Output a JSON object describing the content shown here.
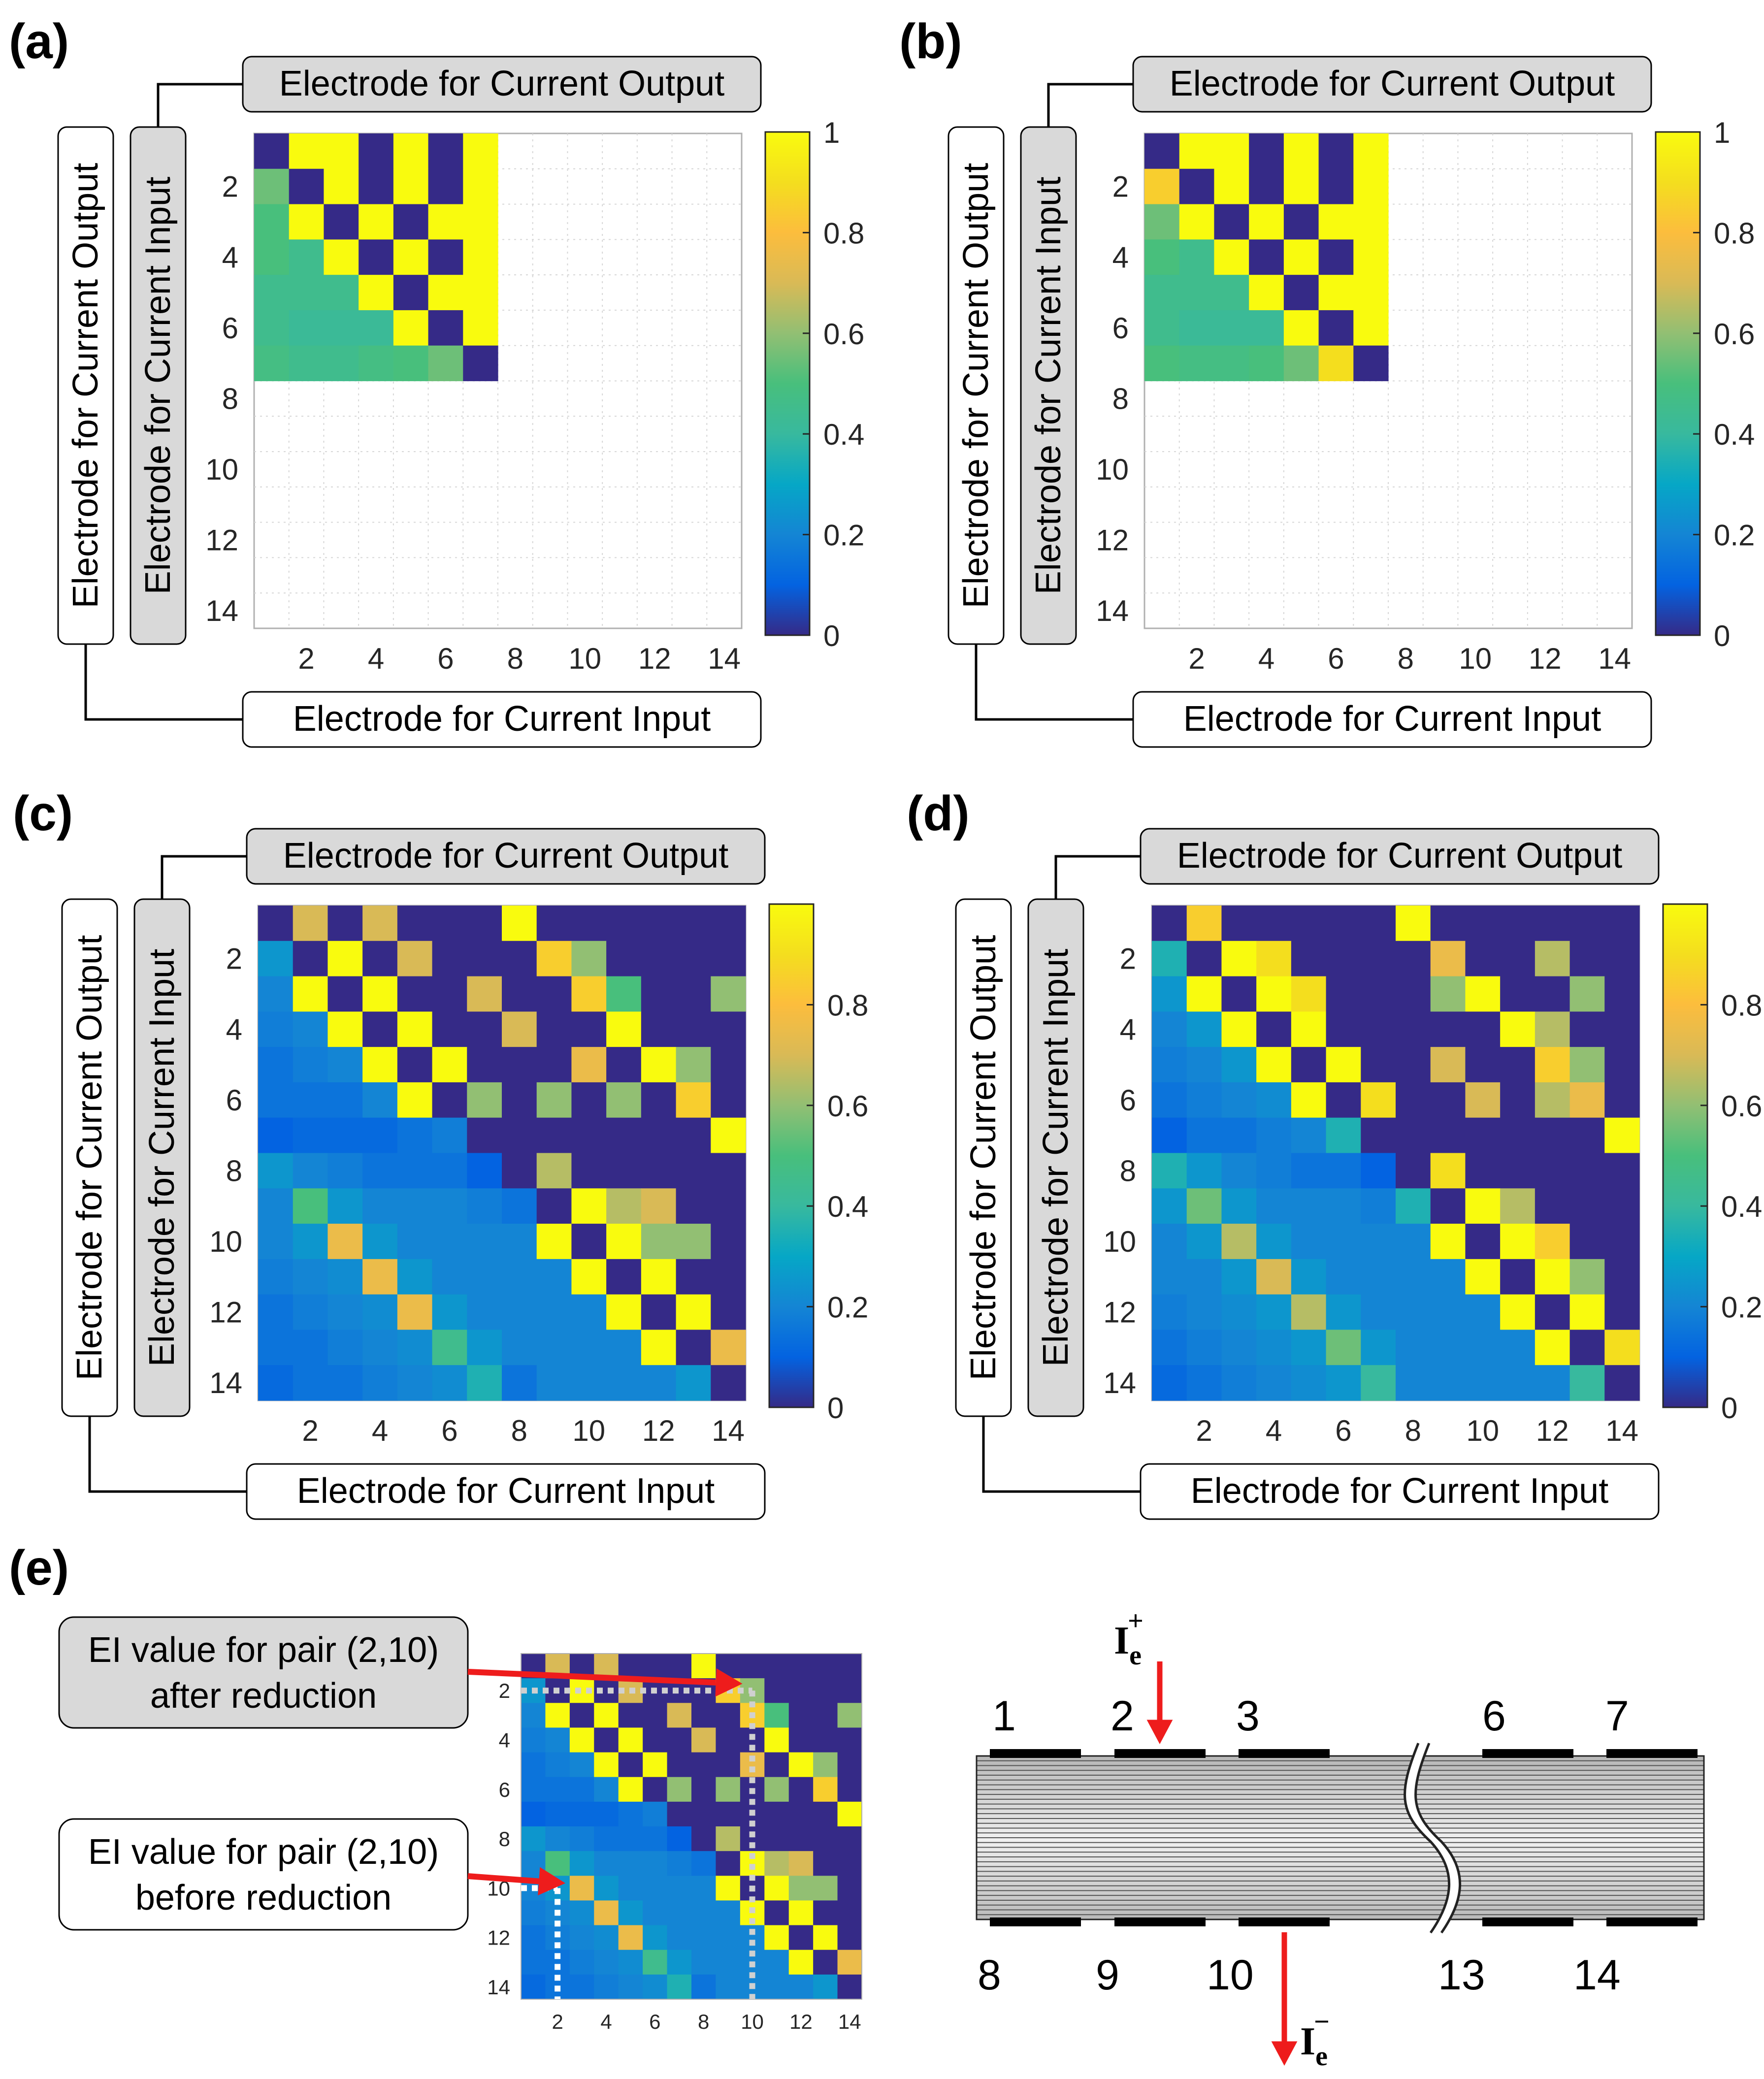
{
  "panels": [
    {
      "id": "a",
      "label": "(a)",
      "n": 7,
      "colorbar_ticks": [
        "0",
        "0.2",
        "0.4",
        "0.6",
        "0.8",
        "1"
      ]
    },
    {
      "id": "b",
      "label": "(b)",
      "n": 7,
      "colorbar_ticks": [
        "0",
        "0.2",
        "0.4",
        "0.6",
        "0.8",
        "1"
      ]
    },
    {
      "id": "c",
      "label": "(c)",
      "n": 14,
      "colorbar_ticks": [
        "0",
        "0.2",
        "0.4",
        "0.6",
        "0.8"
      ]
    },
    {
      "id": "d",
      "label": "(d)",
      "n": 14,
      "colorbar_ticks": [
        "0",
        "0.2",
        "0.4",
        "0.6",
        "0.8"
      ]
    }
  ],
  "axis": {
    "size": 14,
    "ticks": [
      "2",
      "4",
      "6",
      "8",
      "10",
      "12",
      "14"
    ],
    "top_label": "Electrode for Current Output",
    "bottom_label": "Electrode for Current Input",
    "outer_label": "Electrode for Current Output",
    "inner_label": "Electrode for Current Input"
  },
  "panel_e": {
    "label": "(e)",
    "callout_after_1": "EI value for pair (2,10)",
    "callout_after_2": "after reduction",
    "callout_before_1": "EI value for pair (2,10)",
    "callout_before_2": "before reduction"
  },
  "schematic": {
    "top_electrodes": [
      "1",
      "2",
      "3",
      "6",
      "7"
    ],
    "bottom_electrodes": [
      "8",
      "9",
      "10",
      "13",
      "14"
    ],
    "current_in": "I",
    "current_in_sub": "e",
    "current_in_sup": "+",
    "current_out": "I",
    "current_out_sub": "e",
    "current_out_sup": "−"
  },
  "chart_data": [
    {
      "type": "heatmap",
      "id": "a",
      "colormap": "parula",
      "clim": [
        0,
        1
      ],
      "xlabel": "Electrode for Current Input",
      "ylabel": "Electrode for Current Output",
      "x_ticks": [
        2,
        4,
        6,
        8,
        10,
        12,
        14
      ],
      "y_ticks": [
        2,
        4,
        6,
        8,
        10,
        12,
        14
      ],
      "matrix": [
        [
          0,
          1,
          1,
          0,
          1,
          0,
          1
        ],
        [
          0.55,
          0,
          1,
          0,
          1,
          0,
          1
        ],
        [
          0.5,
          1,
          0,
          1,
          0,
          1,
          1
        ],
        [
          0.5,
          0.45,
          1,
          0,
          1,
          0,
          1
        ],
        [
          0.45,
          0.45,
          0.45,
          1,
          0,
          1,
          1
        ],
        [
          0.45,
          0.42,
          0.42,
          0.42,
          1,
          0,
          1
        ],
        [
          0.48,
          0.45,
          0.45,
          0.48,
          0.5,
          0.55,
          0
        ]
      ]
    },
    {
      "type": "heatmap",
      "id": "b",
      "colormap": "parula",
      "clim": [
        0,
        1
      ],
      "xlabel": "Electrode for Current Input",
      "ylabel": "Electrode for Current Output",
      "x_ticks": [
        2,
        4,
        6,
        8,
        10,
        12,
        14
      ],
      "y_ticks": [
        2,
        4,
        6,
        8,
        10,
        12,
        14
      ],
      "matrix": [
        [
          0,
          1,
          1,
          0,
          1,
          0,
          1
        ],
        [
          0.85,
          0,
          1,
          0,
          1,
          0,
          1
        ],
        [
          0.55,
          1,
          0,
          1,
          0,
          1,
          1
        ],
        [
          0.5,
          0.45,
          1,
          0,
          1,
          0,
          1
        ],
        [
          0.45,
          0.45,
          0.45,
          1,
          0,
          1,
          1
        ],
        [
          0.45,
          0.42,
          0.42,
          0.42,
          1,
          0,
          1
        ],
        [
          0.5,
          0.48,
          0.48,
          0.5,
          0.55,
          0.9,
          0
        ]
      ]
    },
    {
      "type": "heatmap",
      "id": "c",
      "colormap": "parula",
      "clim": [
        0,
        1
      ],
      "xlabel": "Electrode for Current Input",
      "ylabel": "Electrode for Current Output",
      "x_ticks": [
        2,
        4,
        6,
        8,
        10,
        12,
        14
      ],
      "y_ticks": [
        2,
        4,
        6,
        8,
        10,
        12,
        14
      ],
      "matrix": [
        [
          0,
          0.7,
          0,
          0.7,
          0,
          0,
          0,
          1,
          0,
          0,
          0,
          0,
          0,
          0
        ],
        [
          0.25,
          0,
          1,
          0,
          0.7,
          0,
          0,
          0,
          0.85,
          0.6,
          0,
          0,
          0,
          0
        ],
        [
          0.2,
          1,
          0,
          1,
          0,
          0,
          0.7,
          0,
          0,
          0.85,
          0.5,
          0,
          0,
          0.6
        ],
        [
          0.18,
          0.2,
          1,
          0,
          1,
          0,
          0,
          0.7,
          0,
          0,
          1,
          0,
          0,
          0
        ],
        [
          0.15,
          0.18,
          0.2,
          1,
          0,
          1,
          0,
          0,
          0,
          0.75,
          0,
          1,
          0.6,
          0
        ],
        [
          0.15,
          0.15,
          0.15,
          0.2,
          1,
          0,
          0.6,
          0,
          0.6,
          0,
          0.6,
          0,
          0.85,
          0
        ],
        [
          0.1,
          0.12,
          0.12,
          0.12,
          0.15,
          0.18,
          0,
          0,
          0,
          0,
          0,
          0,
          0,
          1
        ],
        [
          0.25,
          0.2,
          0.18,
          0.15,
          0.15,
          0.15,
          0.1,
          0,
          0.65,
          0,
          0,
          0,
          0,
          0
        ],
        [
          0.2,
          0.5,
          0.25,
          0.2,
          0.2,
          0.2,
          0.18,
          0.15,
          0,
          1,
          0.65,
          0.7,
          0,
          0
        ],
        [
          0.2,
          0.25,
          0.75,
          0.25,
          0.2,
          0.2,
          0.2,
          0.2,
          1,
          0,
          1,
          0.6,
          0.6,
          0
        ],
        [
          0.18,
          0.2,
          0.22,
          0.75,
          0.25,
          0.2,
          0.2,
          0.2,
          0.2,
          1,
          0,
          1,
          0,
          0
        ],
        [
          0.15,
          0.18,
          0.2,
          0.22,
          0.75,
          0.25,
          0.2,
          0.2,
          0.2,
          0.2,
          1,
          0,
          1,
          0
        ],
        [
          0.15,
          0.15,
          0.18,
          0.2,
          0.22,
          0.45,
          0.25,
          0.2,
          0.2,
          0.2,
          0.2,
          1,
          0,
          0.75
        ],
        [
          0.12,
          0.15,
          0.15,
          0.18,
          0.2,
          0.22,
          0.35,
          0.15,
          0.2,
          0.2,
          0.2,
          0.2,
          0.25,
          0
        ]
      ]
    },
    {
      "type": "heatmap",
      "id": "d",
      "colormap": "parula",
      "clim": [
        0,
        1
      ],
      "xlabel": "Electrode for Current Input",
      "ylabel": "Electrode for Current Output",
      "x_ticks": [
        2,
        4,
        6,
        8,
        10,
        12,
        14
      ],
      "y_ticks": [
        2,
        4,
        6,
        8,
        10,
        12,
        14
      ],
      "matrix": [
        [
          0,
          0.85,
          0,
          0,
          0,
          0,
          0,
          1,
          0,
          0,
          0,
          0,
          0,
          0
        ],
        [
          0.35,
          0,
          1,
          0.9,
          0,
          0,
          0,
          0,
          0.75,
          0,
          0,
          0.65,
          0,
          0
        ],
        [
          0.25,
          1,
          0,
          1,
          0.9,
          0,
          0,
          0,
          0.6,
          1,
          0,
          0,
          0.6,
          0
        ],
        [
          0.2,
          0.25,
          1,
          0,
          1,
          0,
          0,
          0,
          0,
          0,
          1,
          0.65,
          0,
          0
        ],
        [
          0.18,
          0.2,
          0.25,
          1,
          0,
          1,
          0,
          0,
          0.7,
          0,
          0,
          0.85,
          0.6,
          0
        ],
        [
          0.15,
          0.18,
          0.2,
          0.22,
          1,
          0,
          0.9,
          0,
          0,
          0.7,
          0,
          0.65,
          0.75,
          0
        ],
        [
          0.1,
          0.15,
          0.15,
          0.18,
          0.2,
          0.35,
          0,
          0,
          0,
          0,
          0,
          0,
          0,
          1
        ],
        [
          0.35,
          0.25,
          0.2,
          0.18,
          0.15,
          0.15,
          0.1,
          0,
          0.9,
          0,
          0,
          0,
          0,
          0
        ],
        [
          0.25,
          0.55,
          0.25,
          0.2,
          0.2,
          0.2,
          0.18,
          0.35,
          0,
          1,
          0.65,
          0,
          0,
          0
        ],
        [
          0.2,
          0.25,
          0.65,
          0.25,
          0.2,
          0.2,
          0.2,
          0.2,
          1,
          0,
          1,
          0.85,
          0,
          0
        ],
        [
          0.2,
          0.2,
          0.25,
          0.7,
          0.25,
          0.2,
          0.2,
          0.2,
          0.2,
          1,
          0,
          1,
          0.6,
          0
        ],
        [
          0.18,
          0.2,
          0.22,
          0.25,
          0.65,
          0.25,
          0.2,
          0.2,
          0.2,
          0.2,
          1,
          0,
          1,
          0
        ],
        [
          0.15,
          0.18,
          0.2,
          0.22,
          0.25,
          0.55,
          0.25,
          0.2,
          0.2,
          0.2,
          0.2,
          1,
          0,
          0.9
        ],
        [
          0.12,
          0.15,
          0.18,
          0.2,
          0.22,
          0.25,
          0.4,
          0.2,
          0.2,
          0.2,
          0.2,
          0.2,
          0.4,
          0
        ]
      ]
    },
    {
      "type": "heatmap",
      "id": "e",
      "colormap": "parula",
      "clim": [
        0,
        1
      ],
      "x_ticks": [
        2,
        4,
        6,
        8,
        10,
        12,
        14
      ],
      "y_ticks": [
        2,
        4,
        6,
        8,
        10,
        12,
        14
      ],
      "matrix": [
        [
          0,
          0.7,
          0,
          0.7,
          0,
          0,
          0,
          1,
          0,
          0,
          0,
          0,
          0,
          0
        ],
        [
          0.25,
          0,
          1,
          0,
          0.7,
          0,
          0,
          0,
          0.85,
          0.6,
          0,
          0,
          0,
          0
        ],
        [
          0.2,
          1,
          0,
          1,
          0,
          0,
          0.7,
          0,
          0,
          0.85,
          0.5,
          0,
          0,
          0.6
        ],
        [
          0.18,
          0.2,
          1,
          0,
          1,
          0,
          0,
          0.7,
          0,
          0,
          1,
          0,
          0,
          0
        ],
        [
          0.15,
          0.18,
          0.2,
          1,
          0,
          1,
          0,
          0,
          0,
          0.75,
          0,
          1,
          0.6,
          0
        ],
        [
          0.15,
          0.15,
          0.15,
          0.2,
          1,
          0,
          0.6,
          0,
          0.6,
          0,
          0.6,
          0,
          0.85,
          0
        ],
        [
          0.1,
          0.12,
          0.12,
          0.12,
          0.15,
          0.18,
          0,
          0,
          0,
          0,
          0,
          0,
          0,
          1
        ],
        [
          0.25,
          0.2,
          0.18,
          0.15,
          0.15,
          0.15,
          0.1,
          0,
          0.65,
          0,
          0,
          0,
          0,
          0
        ],
        [
          0.2,
          0.5,
          0.25,
          0.2,
          0.2,
          0.2,
          0.18,
          0.15,
          0,
          1,
          0.65,
          0.7,
          0,
          0
        ],
        [
          0.2,
          0.25,
          0.75,
          0.25,
          0.2,
          0.2,
          0.2,
          0.2,
          1,
          0,
          1,
          0.6,
          0.6,
          0
        ],
        [
          0.18,
          0.2,
          0.22,
          0.75,
          0.25,
          0.2,
          0.2,
          0.2,
          0.2,
          1,
          0,
          1,
          0,
          0
        ],
        [
          0.15,
          0.18,
          0.2,
          0.22,
          0.75,
          0.25,
          0.2,
          0.2,
          0.2,
          0.2,
          1,
          0,
          1,
          0
        ],
        [
          0.15,
          0.15,
          0.18,
          0.2,
          0.22,
          0.45,
          0.25,
          0.2,
          0.2,
          0.2,
          0.2,
          1,
          0,
          0.75
        ],
        [
          0.12,
          0.15,
          0.15,
          0.18,
          0.2,
          0.22,
          0.35,
          0.15,
          0.2,
          0.2,
          0.2,
          0.2,
          0.25,
          0
        ]
      ]
    }
  ]
}
